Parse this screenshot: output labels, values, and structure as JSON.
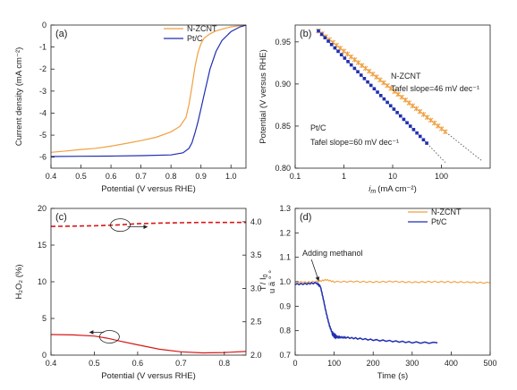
{
  "colors": {
    "nzcnt": "#f0a040",
    "ptc": "#1f2fb0",
    "h2o2": "#d81818",
    "n_curve": "#d81818",
    "fit": "#555555",
    "axis": "#222222"
  },
  "chart_data": [
    {
      "id": "a",
      "panel_label": "(a)",
      "type": "line",
      "xlabel": "Potential (V versus RHE)",
      "ylabel": "Current density (mA cm⁻²)",
      "xlim": [
        0.4,
        1.05
      ],
      "ylim": [
        -6.5,
        0
      ],
      "xticks": [
        0.4,
        0.5,
        0.6,
        0.7,
        0.8,
        0.9,
        1.0
      ],
      "yticks": [
        0,
        -1,
        -2,
        -3,
        -4,
        -5,
        -6
      ],
      "legend_position": "top-right",
      "series": [
        {
          "name": "N-ZCNT",
          "color_key": "nzcnt",
          "x": [
            0.4,
            0.45,
            0.5,
            0.55,
            0.6,
            0.65,
            0.7,
            0.75,
            0.8,
            0.83,
            0.85,
            0.86,
            0.87,
            0.88,
            0.89,
            0.9,
            0.91,
            0.93,
            0.95,
            0.98,
            1.0,
            1.03,
            1.05
          ],
          "y": [
            -5.78,
            -5.72,
            -5.65,
            -5.6,
            -5.5,
            -5.38,
            -5.25,
            -5.1,
            -4.85,
            -4.6,
            -4.2,
            -3.6,
            -2.8,
            -1.9,
            -1.25,
            -0.85,
            -0.6,
            -0.4,
            -0.27,
            -0.15,
            -0.08,
            -0.03,
            -0.01
          ]
        },
        {
          "name": "Pt/C",
          "color_key": "ptc",
          "x": [
            0.4,
            0.5,
            0.6,
            0.7,
            0.8,
            0.84,
            0.86,
            0.87,
            0.88,
            0.89,
            0.9,
            0.91,
            0.92,
            0.93,
            0.95,
            0.97,
            1.0,
            1.03,
            1.05
          ],
          "y": [
            -5.97,
            -5.96,
            -5.95,
            -5.93,
            -5.9,
            -5.8,
            -5.6,
            -5.35,
            -4.9,
            -4.4,
            -3.8,
            -3.2,
            -2.6,
            -2.0,
            -1.2,
            -0.7,
            -0.3,
            -0.08,
            -0.01
          ]
        }
      ]
    },
    {
      "id": "b",
      "panel_label": "(b)",
      "type": "scatter",
      "xlabel": "i_m (mA cm⁻²)",
      "xlabel_main": "i",
      "xlabel_sub": "m",
      "xlabel_tail": "(mA cm⁻²)",
      "ylabel": "Potential (V versus RHE)",
      "xscale": "log",
      "xlim": [
        0.1,
        1000
      ],
      "ylim": [
        0.8,
        0.97
      ],
      "xticks": [
        0.1,
        1,
        10,
        100
      ],
      "yticks": [
        0.8,
        0.85,
        0.9,
        0.95
      ],
      "legend_position": "none",
      "series": [
        {
          "name": "N-ZCNT",
          "color_key": "nzcnt",
          "slope": 0.046,
          "x_start": 0.3,
          "x_end": 120,
          "points": 36,
          "fit_x_end": 700,
          "annotation": [
            "N-ZCNT",
            "Tafel slope=46 mV dec⁻¹"
          ]
        },
        {
          "name": "Pt/C",
          "color_key": "ptc",
          "slope": 0.06,
          "x_start": 0.3,
          "x_end": 50,
          "points": 34,
          "fit_x_end": 120,
          "annotation": [
            "Pt/C",
            "Tafel slope=60 mV dec⁻¹"
          ]
        }
      ]
    },
    {
      "id": "c",
      "panel_label": "(c)",
      "type": "line",
      "xlabel": "Potential (V versus RHE)",
      "ylabel": "H₂O₂ (%)",
      "ylabel_right": "u ä ° °",
      "xlim": [
        0.4,
        0.85
      ],
      "ylim": [
        0,
        20
      ],
      "ylim_right": [
        2.0,
        4.2
      ],
      "xticks": [
        0.4,
        0.5,
        0.6,
        0.7,
        0.8
      ],
      "yticks": [
        0,
        5,
        10,
        15,
        20
      ],
      "yticks_right": [
        2.0,
        2.5,
        3.0,
        3.5,
        4.0
      ],
      "series": [
        {
          "name": "H2O2",
          "axis": "left",
          "color_key": "h2o2",
          "style": "solid",
          "x": [
            0.4,
            0.45,
            0.5,
            0.53,
            0.56,
            0.6,
            0.65,
            0.7,
            0.75,
            0.8,
            0.85
          ],
          "y": [
            2.8,
            2.75,
            2.6,
            2.3,
            1.9,
            1.4,
            0.8,
            0.45,
            0.3,
            0.35,
            0.5
          ]
        },
        {
          "name": "n",
          "axis": "right",
          "color_key": "n_curve",
          "style": "dashed",
          "x": [
            0.4,
            0.45,
            0.5,
            0.55,
            0.6,
            0.65,
            0.7,
            0.75,
            0.8,
            0.85
          ],
          "y": [
            3.93,
            3.935,
            3.94,
            3.95,
            3.97,
            3.98,
            3.985,
            3.99,
            3.99,
            3.99
          ]
        }
      ]
    },
    {
      "id": "d",
      "panel_label": "(d)",
      "type": "line",
      "xlabel": "Time (s)",
      "ylabel": "I / I₀",
      "ylabel_main": "I / I",
      "ylabel_sub": "0",
      "xlim": [
        0,
        500
      ],
      "ylim": [
        0.7,
        1.3
      ],
      "xticks": [
        0,
        100,
        200,
        300,
        400,
        500
      ],
      "yticks": [
        0.7,
        0.8,
        0.9,
        1.0,
        1.1,
        1.2,
        1.3
      ],
      "legend_position": "top-right",
      "annotation": "Adding methanol",
      "annotation_arrow_x": 60,
      "series": [
        {
          "name": "N-ZCNT",
          "color_key": "nzcnt",
          "x": [
            0,
            30,
            60,
            80,
            100,
            150,
            200,
            250,
            300,
            350,
            400,
            450,
            500
          ],
          "y": [
            1.0,
            0.998,
            1.002,
            1.008,
            1.0,
            1.001,
            0.999,
            1.001,
            0.998,
            1.0,
            0.999,
            0.998,
            0.995
          ]
        },
        {
          "name": "Pt/C",
          "color_key": "ptc",
          "x": [
            0,
            30,
            55,
            65,
            72,
            80,
            88,
            95,
            100,
            105,
            115,
            130,
            160,
            200,
            250,
            300,
            365
          ],
          "y": [
            0.99,
            0.992,
            0.995,
            0.98,
            0.93,
            0.87,
            0.82,
            0.79,
            0.78,
            0.775,
            0.773,
            0.772,
            0.768,
            0.762,
            0.757,
            0.752,
            0.75
          ]
        }
      ]
    }
  ]
}
